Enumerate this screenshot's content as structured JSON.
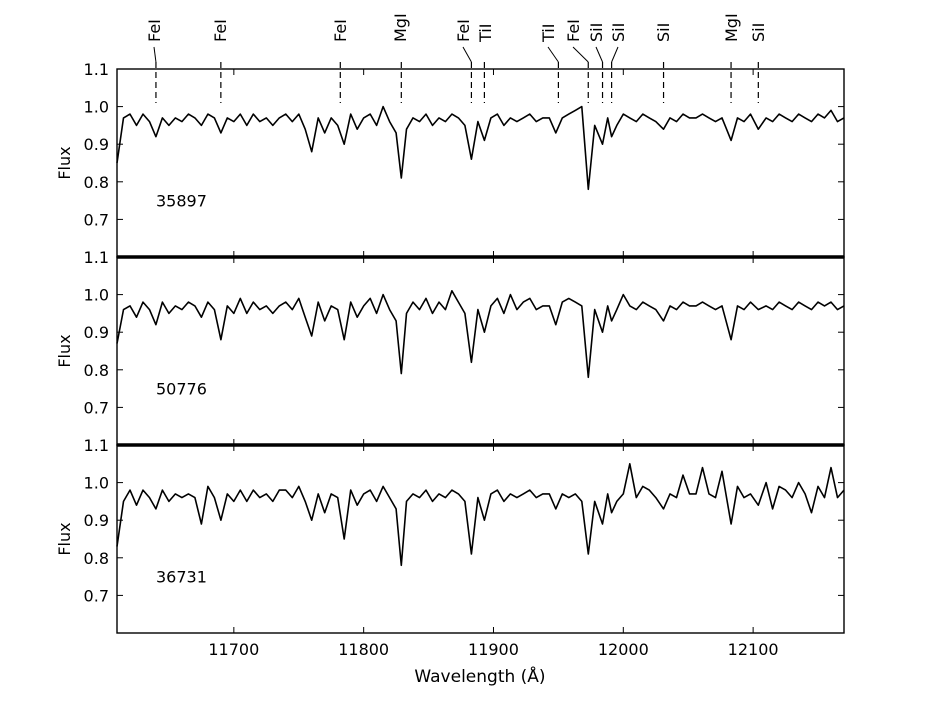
{
  "chart_data": {
    "type": "line",
    "xlabel": "Wavelength (Å)",
    "ylabel": "Flux",
    "xlim": [
      11610,
      12170
    ],
    "ylim": [
      0.6,
      1.1
    ],
    "x_ticks": [
      11700,
      11800,
      11900,
      12000,
      12100
    ],
    "y_ticks": [
      0.7,
      0.8,
      0.9,
      1.0,
      1.1
    ],
    "line_color": "#000000",
    "line_markers": [
      {
        "label": "FeI",
        "x": 11640
      },
      {
        "label": "FeI",
        "x": 11690
      },
      {
        "label": "FeI",
        "x": 11782
      },
      {
        "label": "MgI",
        "x": 11829
      },
      {
        "label": "FeI",
        "x": 11883
      },
      {
        "label": "TiI",
        "x": 11893
      },
      {
        "label": "TiI",
        "x": 11950
      },
      {
        "label": "FeI",
        "x": 11973
      },
      {
        "label": "SiI",
        "x": 11984
      },
      {
        "label": "SiI",
        "x": 11991
      },
      {
        "label": "SiI",
        "x": 12031
      },
      {
        "label": "MgI",
        "x": 12083
      },
      {
        "label": "SiI",
        "x": 12104
      }
    ],
    "panels": [
      {
        "label": "35897",
        "x": [
          11610,
          11615,
          11620,
          11625,
          11630,
          11635,
          11640,
          11645,
          11650,
          11655,
          11660,
          11665,
          11670,
          11675,
          11680,
          11685,
          11690,
          11695,
          11700,
          11705,
          11710,
          11715,
          11720,
          11725,
          11730,
          11735,
          11740,
          11745,
          11750,
          11755,
          11760,
          11765,
          11770,
          11775,
          11780,
          11785,
          11790,
          11795,
          11800,
          11805,
          11810,
          11815,
          11820,
          11825,
          11829,
          11833,
          11838,
          11843,
          11848,
          11853,
          11858,
          11863,
          11868,
          11873,
          11878,
          11883,
          11888,
          11893,
          11898,
          11903,
          11908,
          11913,
          11918,
          11923,
          11928,
          11933,
          11938,
          11943,
          11948,
          11953,
          11958,
          11963,
          11968,
          11973,
          11978,
          11984,
          11988,
          11991,
          11995,
          12000,
          12005,
          12010,
          12015,
          12020,
          12025,
          12031,
          12036,
          12041,
          12046,
          12051,
          12056,
          12061,
          12066,
          12071,
          12076,
          12083,
          12088,
          12093,
          12098,
          12104,
          12110,
          12115,
          12120,
          12125,
          12130,
          12135,
          12140,
          12145,
          12150,
          12155,
          12160,
          12165,
          12170
        ],
        "y": [
          0.85,
          0.97,
          0.98,
          0.95,
          0.98,
          0.96,
          0.92,
          0.97,
          0.95,
          0.97,
          0.96,
          0.98,
          0.97,
          0.95,
          0.98,
          0.97,
          0.93,
          0.97,
          0.96,
          0.98,
          0.95,
          0.98,
          0.96,
          0.97,
          0.95,
          0.97,
          0.98,
          0.96,
          0.98,
          0.94,
          0.88,
          0.97,
          0.93,
          0.97,
          0.95,
          0.9,
          0.98,
          0.94,
          0.97,
          0.98,
          0.95,
          1.0,
          0.96,
          0.93,
          0.81,
          0.94,
          0.97,
          0.96,
          0.98,
          0.95,
          0.97,
          0.96,
          0.98,
          0.97,
          0.95,
          0.86,
          0.96,
          0.91,
          0.97,
          0.98,
          0.95,
          0.97,
          0.96,
          0.97,
          0.98,
          0.96,
          0.97,
          0.97,
          0.93,
          0.97,
          0.98,
          0.99,
          1.0,
          0.78,
          0.95,
          0.9,
          0.97,
          0.92,
          0.95,
          0.98,
          0.97,
          0.96,
          0.98,
          0.97,
          0.96,
          0.94,
          0.97,
          0.96,
          0.98,
          0.97,
          0.97,
          0.98,
          0.97,
          0.96,
          0.97,
          0.91,
          0.97,
          0.96,
          0.98,
          0.94,
          0.97,
          0.96,
          0.98,
          0.97,
          0.96,
          0.98,
          0.97,
          0.96,
          0.98,
          0.97,
          0.99,
          0.96,
          0.97
        ]
      },
      {
        "label": "50776",
        "x": [
          11610,
          11615,
          11620,
          11625,
          11630,
          11635,
          11640,
          11645,
          11650,
          11655,
          11660,
          11665,
          11670,
          11675,
          11680,
          11685,
          11690,
          11695,
          11700,
          11705,
          11710,
          11715,
          11720,
          11725,
          11730,
          11735,
          11740,
          11745,
          11750,
          11755,
          11760,
          11765,
          11770,
          11775,
          11780,
          11785,
          11790,
          11795,
          11800,
          11805,
          11810,
          11815,
          11820,
          11825,
          11829,
          11833,
          11838,
          11843,
          11848,
          11853,
          11858,
          11863,
          11868,
          11873,
          11878,
          11883,
          11888,
          11893,
          11898,
          11903,
          11908,
          11913,
          11918,
          11923,
          11928,
          11933,
          11938,
          11943,
          11948,
          11953,
          11958,
          11963,
          11968,
          11973,
          11978,
          11984,
          11988,
          11991,
          11995,
          12000,
          12005,
          12010,
          12015,
          12020,
          12025,
          12031,
          12036,
          12041,
          12046,
          12051,
          12056,
          12061,
          12066,
          12071,
          12076,
          12083,
          12088,
          12093,
          12098,
          12104,
          12110,
          12115,
          12120,
          12125,
          12130,
          12135,
          12140,
          12145,
          12150,
          12155,
          12160,
          12165,
          12170
        ],
        "y": [
          0.87,
          0.96,
          0.97,
          0.94,
          0.98,
          0.96,
          0.92,
          0.98,
          0.95,
          0.97,
          0.96,
          0.98,
          0.97,
          0.94,
          0.98,
          0.96,
          0.88,
          0.97,
          0.95,
          0.99,
          0.95,
          0.98,
          0.96,
          0.97,
          0.95,
          0.97,
          0.98,
          0.96,
          0.99,
          0.94,
          0.89,
          0.98,
          0.93,
          0.97,
          0.96,
          0.88,
          0.98,
          0.94,
          0.97,
          0.99,
          0.95,
          1.0,
          0.96,
          0.93,
          0.79,
          0.95,
          0.98,
          0.96,
          0.99,
          0.95,
          0.98,
          0.96,
          1.01,
          0.98,
          0.95,
          0.82,
          0.96,
          0.9,
          0.97,
          0.99,
          0.95,
          1.0,
          0.96,
          0.98,
          0.99,
          0.96,
          0.97,
          0.97,
          0.92,
          0.98,
          0.99,
          0.98,
          0.97,
          0.78,
          0.96,
          0.9,
          0.97,
          0.93,
          0.96,
          1.0,
          0.97,
          0.96,
          0.98,
          0.97,
          0.96,
          0.93,
          0.97,
          0.96,
          0.98,
          0.97,
          0.97,
          0.98,
          0.97,
          0.96,
          0.97,
          0.88,
          0.97,
          0.96,
          0.98,
          0.96,
          0.97,
          0.96,
          0.98,
          0.97,
          0.96,
          0.98,
          0.97,
          0.96,
          0.98,
          0.97,
          0.98,
          0.96,
          0.97
        ]
      },
      {
        "label": "36731",
        "x": [
          11610,
          11615,
          11620,
          11625,
          11630,
          11635,
          11640,
          11645,
          11650,
          11655,
          11660,
          11665,
          11670,
          11675,
          11680,
          11685,
          11690,
          11695,
          11700,
          11705,
          11710,
          11715,
          11720,
          11725,
          11730,
          11735,
          11740,
          11745,
          11750,
          11755,
          11760,
          11765,
          11770,
          11775,
          11780,
          11785,
          11790,
          11795,
          11800,
          11805,
          11810,
          11815,
          11820,
          11825,
          11829,
          11833,
          11838,
          11843,
          11848,
          11853,
          11858,
          11863,
          11868,
          11873,
          11878,
          11883,
          11888,
          11893,
          11898,
          11903,
          11908,
          11913,
          11918,
          11923,
          11928,
          11933,
          11938,
          11943,
          11948,
          11953,
          11958,
          11963,
          11968,
          11973,
          11978,
          11984,
          11988,
          11991,
          11995,
          12000,
          12005,
          12010,
          12015,
          12020,
          12025,
          12031,
          12036,
          12041,
          12046,
          12051,
          12056,
          12061,
          12066,
          12071,
          12076,
          12083,
          12088,
          12093,
          12098,
          12104,
          12110,
          12115,
          12120,
          12125,
          12130,
          12135,
          12140,
          12145,
          12150,
          12155,
          12160,
          12165,
          12170
        ],
        "y": [
          0.83,
          0.95,
          0.98,
          0.94,
          0.98,
          0.96,
          0.93,
          0.98,
          0.95,
          0.97,
          0.96,
          0.97,
          0.96,
          0.89,
          0.99,
          0.96,
          0.9,
          0.97,
          0.95,
          0.98,
          0.95,
          0.98,
          0.96,
          0.97,
          0.95,
          0.98,
          0.98,
          0.96,
          0.99,
          0.95,
          0.9,
          0.97,
          0.92,
          0.97,
          0.96,
          0.85,
          0.98,
          0.94,
          0.97,
          0.98,
          0.95,
          0.99,
          0.96,
          0.93,
          0.78,
          0.95,
          0.97,
          0.96,
          0.98,
          0.95,
          0.97,
          0.96,
          0.98,
          0.97,
          0.95,
          0.81,
          0.96,
          0.9,
          0.97,
          0.98,
          0.95,
          0.97,
          0.96,
          0.97,
          0.98,
          0.96,
          0.97,
          0.97,
          0.93,
          0.97,
          0.96,
          0.97,
          0.95,
          0.81,
          0.95,
          0.89,
          0.97,
          0.92,
          0.95,
          0.97,
          1.05,
          0.96,
          0.99,
          0.98,
          0.96,
          0.93,
          0.97,
          0.96,
          1.02,
          0.97,
          0.97,
          1.04,
          0.97,
          0.96,
          1.03,
          0.89,
          0.99,
          0.96,
          0.97,
          0.94,
          1.0,
          0.93,
          0.99,
          0.98,
          0.96,
          1.0,
          0.97,
          0.92,
          0.99,
          0.96,
          1.04,
          0.96,
          0.98
        ]
      }
    ]
  }
}
